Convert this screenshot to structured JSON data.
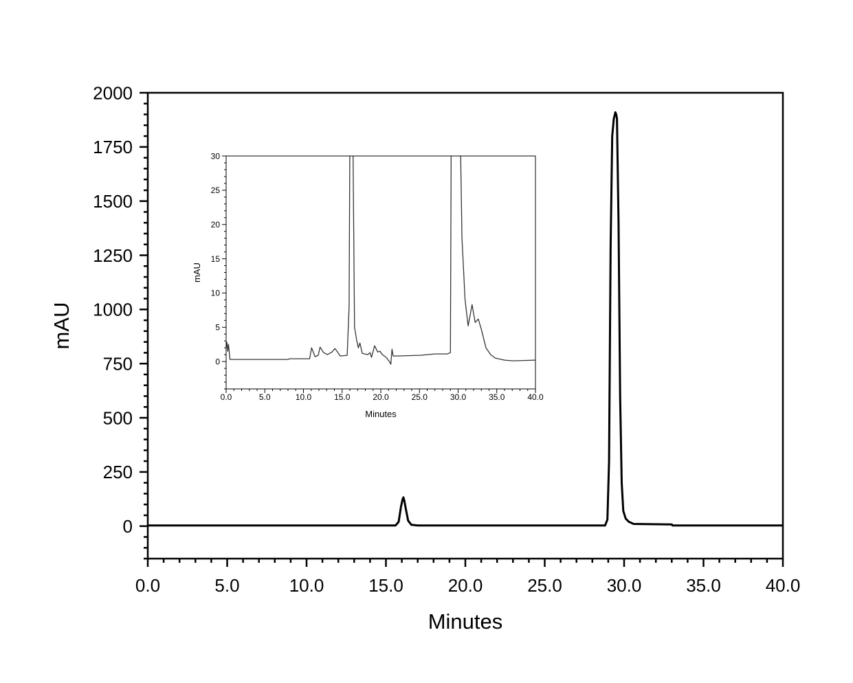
{
  "chart_data": [
    {
      "type": "line",
      "role": "main",
      "xlabel": "Minutes",
      "ylabel": "mAU",
      "xlim": [
        0,
        40
      ],
      "ylim": [
        -150,
        2000
      ],
      "xticks": [
        "0.0",
        "5.0",
        "10.0",
        "15.0",
        "20.0",
        "25.0",
        "30.0",
        "35.0",
        "40.0"
      ],
      "yticks": [
        "0",
        "250",
        "500",
        "750",
        "1000",
        "1250",
        "1500",
        "1750",
        "2000"
      ],
      "grid": false,
      "line_color": "#000000",
      "series": [
        {
          "x": [
            0,
            15.6,
            15.8,
            15.95,
            16.05,
            16.1,
            16.15,
            16.25,
            16.4,
            16.6,
            17,
            28.8,
            28.95,
            29.05,
            29.15,
            29.25,
            29.35,
            29.45,
            29.5,
            29.55,
            29.65,
            29.75,
            29.85,
            29.95,
            30.1,
            30.3,
            30.6,
            33,
            33.05,
            40
          ],
          "y": [
            3,
            3,
            20,
            90,
            125,
            133,
            120,
            80,
            25,
            6,
            3,
            3,
            30,
            300,
            1300,
            1800,
            1880,
            1910,
            1900,
            1880,
            1400,
            600,
            200,
            70,
            35,
            20,
            10,
            8,
            3,
            3
          ]
        }
      ]
    },
    {
      "type": "line",
      "role": "inset",
      "xlabel": "Minutes",
      "ylabel": "mAU",
      "xlim": [
        0,
        40
      ],
      "ylim": [
        -4,
        30
      ],
      "xticks": [
        "0.0",
        "5.0",
        "10.0",
        "15.0",
        "20.0",
        "25.0",
        "30.0",
        "35.0",
        "40.0"
      ],
      "yticks": [
        "0",
        "5",
        "10",
        "15",
        "20",
        "25",
        "30"
      ],
      "grid": false,
      "line_color": "#333333",
      "series": [
        {
          "x": [
            0,
            0.1,
            0.2,
            0.3,
            0.5,
            8.0,
            8.2,
            10.8,
            11.05,
            11.5,
            11.9,
            12.15,
            12.6,
            13.1,
            13.7,
            14.07,
            14.4,
            14.75,
            15.65,
            15.9,
            16.0,
            16.4,
            16.6,
            16.9,
            17.1,
            17.3,
            17.6,
            18.3,
            18.6,
            18.8,
            19.2,
            19.6,
            19.9,
            20.2,
            20.7,
            21.1,
            21.3,
            21.45,
            21.6,
            22.0,
            25,
            27,
            28.6,
            29.0,
            29.1,
            30.3,
            30.5,
            30.9,
            31.3,
            31.8,
            32.2,
            32.6,
            33.0,
            33.6,
            34.2,
            34.8,
            36,
            37.1,
            40
          ],
          "y": [
            2.0,
            2.8,
            1.5,
            2.5,
            0.3,
            0.3,
            0.4,
            0.4,
            2.0,
            0.7,
            0.9,
            2.1,
            1.3,
            1.0,
            1.4,
            1.9,
            1.4,
            0.8,
            0.9,
            8,
            32,
            32,
            5,
            3.0,
            2.0,
            2.7,
            1.2,
            1.0,
            1.3,
            0.6,
            2.3,
            1.4,
            1.5,
            1.0,
            0.6,
            0.0,
            -0.4,
            1.8,
            0.8,
            0.8,
            0.9,
            1.1,
            1.1,
            1.3,
            32,
            32,
            18,
            9,
            5.2,
            8.3,
            5.7,
            6.2,
            4.7,
            2.0,
            1.0,
            0.5,
            0.2,
            0.1,
            0.2
          ]
        }
      ]
    }
  ]
}
